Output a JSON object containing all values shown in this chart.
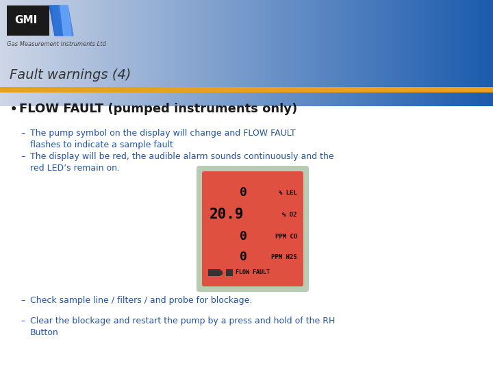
{
  "bg_gradient_left": "#cdd6e6",
  "bg_gradient_right": "#1a5aad",
  "header_stripe_color": "#e8a020",
  "title_text": "Fault warnings (4)",
  "title_color": "#333333",
  "title_fontsize": 14,
  "title_style": "italic",
  "bullet_text": "FLOW FAULT (pumped instruments only)",
  "bullet_color": "#1a1a1a",
  "bullet_fontsize": 13,
  "sub_items": [
    "The pump symbol on the display will change and FLOW FAULT\nflashes to indicate a sample fault",
    "The display will be red, the audible alarm sounds continuously and the\nred LED’s remain on."
  ],
  "sub_items2": [
    "Check sample line / filters / and probe for blockage.",
    "Clear the blockage and restart the pump by a press and hold of the RH\nButton"
  ],
  "sub_color": "#2255aa",
  "sub_fontsize": 9,
  "display_bg": "#e05040",
  "display_border": "#b8ccb4",
  "display_lines": [
    {
      "val": "0",
      "unit": "% LEL"
    },
    {
      "val": "20.9",
      "unit": "% O2"
    },
    {
      "val": "0",
      "unit": "PPM CO"
    },
    {
      "val": "0",
      "unit": "PPM H2S"
    }
  ],
  "display_bottom": "FLOW FAULT",
  "logo_box_color": "#1a1a1a",
  "logo_text": "GMI",
  "logo_text_color": "#ffffff",
  "gmi_subtitle": "Gas Measurement Instruments Ltd"
}
